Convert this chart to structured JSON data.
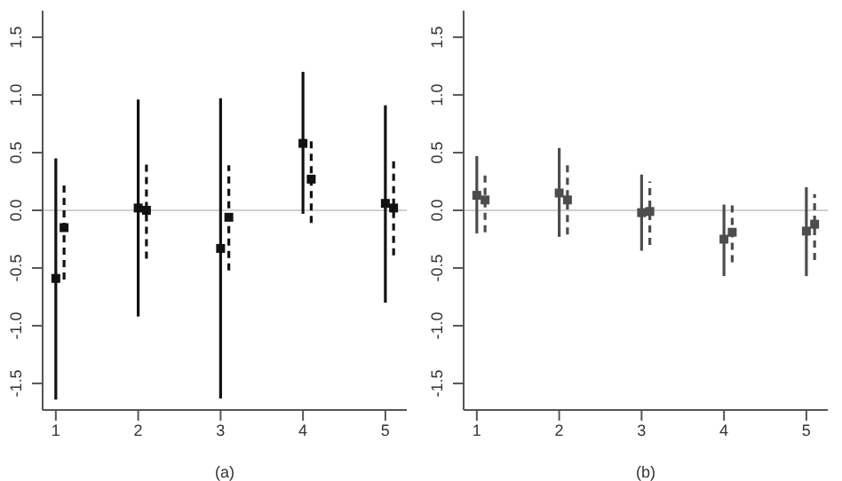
{
  "chart_data": [
    {
      "type": "scatter",
      "xlabel": "(a)",
      "xlim": [
        0.84,
        5.26
      ],
      "xticks": [
        1,
        2,
        3,
        4,
        5
      ],
      "ylim": [
        -1.73,
        1.73
      ],
      "yticks": [
        {
          "value": -1.5,
          "label": "-1.5"
        },
        {
          "value": -1,
          "label": "-1.0"
        },
        {
          "value": -0.5,
          "label": "-0.5"
        },
        {
          "value": 0,
          "label": "0.0"
        },
        {
          "value": 0.5,
          "label": "0.5"
        },
        {
          "value": 1,
          "label": "1.0"
        },
        {
          "value": 1.5,
          "label": "1.5"
        }
      ],
      "marker": "square",
      "grid": false,
      "legend": false,
      "ref_lines": [
        {
          "axis": "y",
          "value": 0,
          "color": "#d0d0d0"
        }
      ],
      "series": [
        {
          "color": "#111111",
          "line_style": "solid",
          "x": [
            1,
            2,
            3,
            4,
            5
          ],
          "values": [
            -0.59,
            0.02,
            -0.33,
            0.58,
            0.06
          ],
          "errors": [
            [
              -1.64,
              0.45
            ],
            [
              -0.92,
              0.96
            ],
            [
              -1.63,
              0.97
            ],
            [
              -0.03,
              1.2
            ],
            [
              -0.8,
              0.91
            ]
          ]
        },
        {
          "color": "#111111",
          "line_style": "dashed",
          "x": [
            1.1,
            2.1,
            3.1,
            4.1,
            5.1
          ],
          "values": [
            -0.15,
            0.0,
            -0.06,
            0.27,
            0.02
          ],
          "errors": [
            [
              -0.6,
              0.24
            ],
            [
              -0.42,
              0.42
            ],
            [
              -0.52,
              0.39
            ],
            [
              -0.11,
              0.62
            ],
            [
              -0.39,
              0.43
            ]
          ]
        }
      ]
    },
    {
      "type": "scatter",
      "xlabel": "(b)",
      "xlim": [
        0.84,
        5.26
      ],
      "xticks": [
        1,
        2,
        3,
        4,
        5
      ],
      "ylim": [
        -1.73,
        1.73
      ],
      "yticks": [
        {
          "value": -1.5,
          "label": "-1.5"
        },
        {
          "value": -1,
          "label": "-1.0"
        },
        {
          "value": -0.5,
          "label": "-0.5"
        },
        {
          "value": 0,
          "label": "0.0"
        },
        {
          "value": 0.5,
          "label": "0.5"
        },
        {
          "value": 1,
          "label": "1.0"
        },
        {
          "value": 1.5,
          "label": "1.5"
        }
      ],
      "marker": "square",
      "grid": false,
      "legend": false,
      "ref_lines": [
        {
          "axis": "y",
          "value": 0,
          "color": "#d0d0d0"
        }
      ],
      "series": [
        {
          "color": "#4d4d4d",
          "line_style": "solid",
          "x": [
            1,
            2,
            3,
            4,
            5
          ],
          "values": [
            0.13,
            0.15,
            -0.02,
            -0.25,
            -0.18
          ],
          "errors": [
            [
              -0.2,
              0.47
            ],
            [
              -0.23,
              0.54
            ],
            [
              -0.35,
              0.31
            ],
            [
              -0.57,
              0.05
            ],
            [
              -0.57,
              0.2
            ]
          ]
        },
        {
          "color": "#4d4d4d",
          "line_style": "dashed",
          "x": [
            1.1,
            2.1,
            3.1,
            4.1,
            5.1
          ],
          "values": [
            0.09,
            0.09,
            -0.01,
            -0.19,
            -0.12
          ],
          "errors": [
            [
              -0.19,
              0.34
            ],
            [
              -0.21,
              0.4
            ],
            [
              -0.3,
              0.25
            ],
            [
              -0.45,
              0.08
            ],
            [
              -0.43,
              0.14
            ]
          ]
        }
      ]
    }
  ]
}
